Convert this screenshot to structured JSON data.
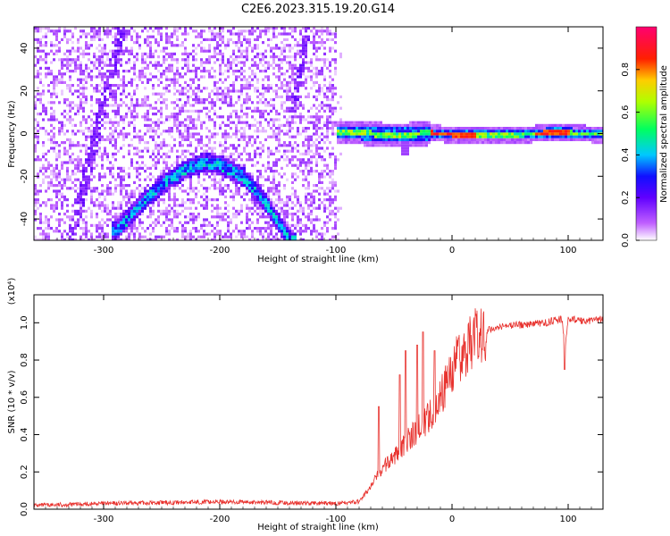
{
  "title": "C2E6.2023.315.19.20.G14",
  "colors": {
    "snr_line": "#e8332f",
    "axis": "#000000",
    "background": "#ffffff"
  },
  "chart_data": [
    {
      "type": "heatmap",
      "xlabel": "Height of straight line (km)",
      "ylabel": "Frequency (Hz)",
      "xlim": [
        -360,
        130
      ],
      "ylim": [
        -50,
        50
      ],
      "xticks": [
        -300,
        -200,
        -100,
        0,
        100
      ],
      "yticks": [
        -40,
        -20,
        0,
        20,
        40
      ],
      "colorbar": {
        "label": "Normalized spectral amplitude",
        "range": [
          0,
          1
        ],
        "ticks": [
          "0.0",
          "0.2",
          "0.4",
          "0.6",
          "0.8"
        ],
        "colormap": [
          "#ffffff",
          "#8a00ff",
          "#1a1aff",
          "#00c8ff",
          "#00ff40",
          "#ffff00",
          "#ff2000",
          "#ff0080"
        ]
      },
      "features": [
        {
          "name": "arc",
          "x": [
            -290,
            -270,
            -250,
            -230,
            -215,
            -200,
            -180,
            -160,
            -140
          ],
          "y": [
            -45,
            -33,
            -23,
            -16,
            -13,
            -14,
            -20,
            -33,
            -50
          ],
          "amplitude": 0.35
        },
        {
          "name": "carrier",
          "x": [
            -120,
            -100,
            -80,
            -60,
            -40,
            -20,
            0,
            20,
            40,
            60,
            80,
            100,
            130
          ],
          "y": [
            2,
            1,
            1,
            0,
            0,
            1,
            0,
            0,
            0,
            0,
            1,
            1,
            0
          ],
          "amplitude": 0.6
        }
      ]
    },
    {
      "type": "line",
      "xlabel": "Height of straight line (km)",
      "ylabel": "SNR (10 * v/v)",
      "y_multiplier": "(x10⁴)",
      "xlim": [
        -360,
        130
      ],
      "ylim": [
        0,
        1.15
      ],
      "xticks": [
        -300,
        -200,
        -100,
        0,
        100
      ],
      "yticks": [
        "0.0",
        "0.2",
        "0.4",
        "0.6",
        "0.8",
        "1.0"
      ],
      "series": [
        {
          "x": [
            -360,
            -300,
            -200,
            -100,
            -80,
            -70,
            -60,
            -50,
            -40,
            -30,
            -20,
            -10,
            0,
            10,
            20,
            30,
            40,
            60,
            80,
            95,
            97,
            100,
            115,
            130
          ],
          "y": [
            0.02,
            0.03,
            0.04,
            0.03,
            0.04,
            0.12,
            0.22,
            0.28,
            0.36,
            0.42,
            0.5,
            0.6,
            0.75,
            0.85,
            0.92,
            0.96,
            0.98,
            0.99,
            1.0,
            1.02,
            0.85,
            1.02,
            1.01,
            1.02
          ],
          "spikes": [
            {
              "x": -63,
              "y": 0.55
            },
            {
              "x": -45,
              "y": 0.72
            },
            {
              "x": -40,
              "y": 0.85
            },
            {
              "x": -30,
              "y": 0.88
            },
            {
              "x": -25,
              "y": 0.95
            },
            {
              "x": -15,
              "y": 0.85
            },
            {
              "x": 97,
              "y": 1.15
            },
            {
              "x": 97,
              "y": 0.75
            }
          ]
        }
      ]
    }
  ]
}
